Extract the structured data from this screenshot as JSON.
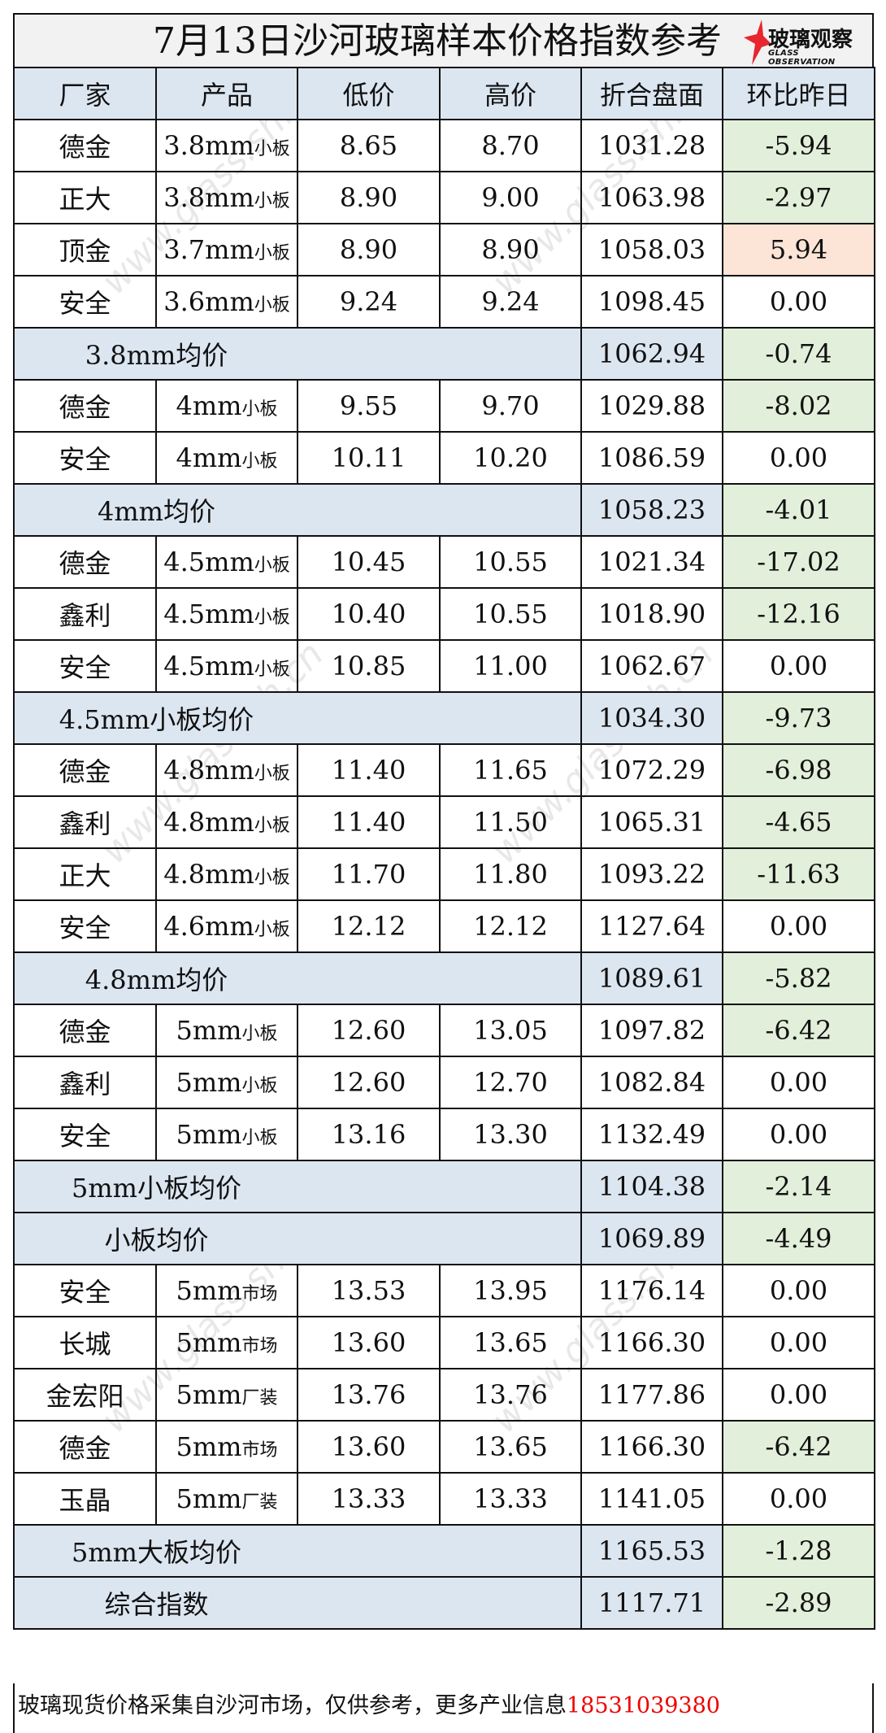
{
  "title": "7月13日沙河玻璃样本价格指数参考",
  "logo": {
    "cn": "玻璃观察",
    "en": "GLASS OBSERVATION"
  },
  "watermark": "www.glass.sh.cn",
  "colors": {
    "header_bg": "#dce6f1",
    "decrease": "#e2efda",
    "increase": "#fce4d6",
    "phone": "#ee0000"
  },
  "headers": [
    "厂家",
    "产品",
    "低价",
    "高价",
    "折合盘面",
    "环比昨日"
  ],
  "rows": [
    {
      "type": "item",
      "maker": "德金",
      "spec": "3.8mm",
      "kind": "小板",
      "low": "8.65",
      "high": "8.70",
      "index": "1031.28",
      "change": "-5.94"
    },
    {
      "type": "item",
      "maker": "正大",
      "spec": "3.8mm",
      "kind": "小板",
      "low": "8.90",
      "high": "9.00",
      "index": "1063.98",
      "change": "-2.97"
    },
    {
      "type": "item",
      "maker": "顶金",
      "spec": "3.7mm",
      "kind": "小板",
      "low": "8.90",
      "high": "8.90",
      "index": "1058.03",
      "change": "5.94"
    },
    {
      "type": "item",
      "maker": "安全",
      "spec": "3.6mm",
      "kind": "小板",
      "low": "9.24",
      "high": "9.24",
      "index": "1098.45",
      "change": "0.00"
    },
    {
      "type": "summary",
      "label": "3.8mm均价",
      "index": "1062.94",
      "change": "-0.74"
    },
    {
      "type": "item",
      "maker": "德金",
      "spec": "4mm",
      "kind": "小板",
      "low": "9.55",
      "high": "9.70",
      "index": "1029.88",
      "change": "-8.02"
    },
    {
      "type": "item",
      "maker": "安全",
      "spec": "4mm",
      "kind": "小板",
      "low": "10.11",
      "high": "10.20",
      "index": "1086.59",
      "change": "0.00"
    },
    {
      "type": "summary",
      "label": "4mm均价",
      "index": "1058.23",
      "change": "-4.01"
    },
    {
      "type": "item",
      "maker": "德金",
      "spec": "4.5mm",
      "kind": "小板",
      "low": "10.45",
      "high": "10.55",
      "index": "1021.34",
      "change": "-17.02"
    },
    {
      "type": "item",
      "maker": "鑫利",
      "spec": "4.5mm",
      "kind": "小板",
      "low": "10.40",
      "high": "10.55",
      "index": "1018.90",
      "change": "-12.16"
    },
    {
      "type": "item",
      "maker": "安全",
      "spec": "4.5mm",
      "kind": "小板",
      "low": "10.85",
      "high": "11.00",
      "index": "1062.67",
      "change": "0.00"
    },
    {
      "type": "summary",
      "label": "4.5mm小板均价",
      "index": "1034.30",
      "change": "-9.73"
    },
    {
      "type": "item",
      "maker": "德金",
      "spec": "4.8mm",
      "kind": "小板",
      "low": "11.40",
      "high": "11.65",
      "index": "1072.29",
      "change": "-6.98"
    },
    {
      "type": "item",
      "maker": "鑫利",
      "spec": "4.8mm",
      "kind": "小板",
      "low": "11.40",
      "high": "11.50",
      "index": "1065.31",
      "change": "-4.65"
    },
    {
      "type": "item",
      "maker": "正大",
      "spec": "4.8mm",
      "kind": "小板",
      "low": "11.70",
      "high": "11.80",
      "index": "1093.22",
      "change": "-11.63"
    },
    {
      "type": "item",
      "maker": "安全",
      "spec": "4.6mm",
      "kind": "小板",
      "low": "12.12",
      "high": "12.12",
      "index": "1127.64",
      "change": "0.00"
    },
    {
      "type": "summary",
      "label": "4.8mm均价",
      "index": "1089.61",
      "change": "-5.82"
    },
    {
      "type": "item",
      "maker": "德金",
      "spec": "5mm",
      "kind": "小板",
      "low": "12.60",
      "high": "13.05",
      "index": "1097.82",
      "change": "-6.42"
    },
    {
      "type": "item",
      "maker": "鑫利",
      "spec": "5mm",
      "kind": "小板",
      "low": "12.60",
      "high": "12.70",
      "index": "1082.84",
      "change": "0.00"
    },
    {
      "type": "item",
      "maker": "安全",
      "spec": "5mm",
      "kind": "小板",
      "low": "13.16",
      "high": "13.30",
      "index": "1132.49",
      "change": "0.00"
    },
    {
      "type": "summary",
      "label": "5mm小板均价",
      "index": "1104.38",
      "change": "-2.14"
    },
    {
      "type": "summary",
      "label": "小板均价",
      "index": "1069.89",
      "change": "-4.49"
    },
    {
      "type": "item",
      "maker": "安全",
      "spec": "5mm",
      "kind": "市场",
      "low": "13.53",
      "high": "13.95",
      "index": "1176.14",
      "change": "0.00"
    },
    {
      "type": "item",
      "maker": "长城",
      "spec": "5mm",
      "kind": "市场",
      "low": "13.60",
      "high": "13.65",
      "index": "1166.30",
      "change": "0.00"
    },
    {
      "type": "item",
      "maker": "金宏阳",
      "spec": "5mm",
      "kind": "厂装",
      "low": "13.76",
      "high": "13.76",
      "index": "1177.86",
      "change": "0.00"
    },
    {
      "type": "item",
      "maker": "德金",
      "spec": "5mm",
      "kind": "市场",
      "low": "13.60",
      "high": "13.65",
      "index": "1166.30",
      "change": "-6.42"
    },
    {
      "type": "item",
      "maker": "玉晶",
      "spec": "5mm",
      "kind": "厂装",
      "low": "13.33",
      "high": "13.33",
      "index": "1141.05",
      "change": "0.00"
    },
    {
      "type": "summary",
      "label": "5mm大板均价",
      "index": "1165.53",
      "change": "-1.28"
    },
    {
      "type": "summary",
      "label": "综合指数",
      "index": "1117.71",
      "change": "-2.89"
    }
  ],
  "footer": {
    "text": "玻璃现货价格采集自沙河市场，仅供参考，更多产业信息",
    "phone": "18531039380"
  }
}
